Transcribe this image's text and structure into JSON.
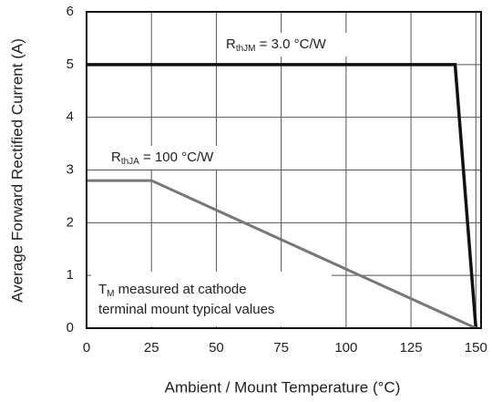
{
  "chart_data": {
    "type": "line",
    "xlabel": "Ambient / Mount Temperature (°C)",
    "ylabel": "Average Forward Rectified Current (A)",
    "xlim": [
      0,
      152
    ],
    "xticks": [
      0,
      25,
      50,
      75,
      100,
      125,
      150
    ],
    "ylim": [
      0,
      6
    ],
    "yticks": [
      0,
      1,
      2,
      3,
      4,
      5,
      6
    ],
    "grid": true,
    "series": [
      {
        "color": "#111111",
        "x": [
          0,
          142,
          150
        ],
        "values": [
          5,
          5,
          0
        ]
      },
      {
        "color": "#777777",
        "x": [
          0,
          25,
          150
        ],
        "values": [
          2.8,
          2.8,
          0
        ]
      }
    ],
    "annotations": [
      {
        "lines": [
          {
            "main": "R",
            "sub": "thJM",
            "rest": " = 3.0 °C/W"
          }
        ]
      },
      {
        "lines": [
          {
            "main": "R",
            "sub": "thJA",
            "rest": " = 100 °C/W"
          }
        ]
      },
      {
        "lines": [
          {
            "main": "T",
            "sub": "M",
            "rest": " measured at cathode"
          },
          {
            "main": "terminal mount typical values"
          }
        ]
      }
    ]
  }
}
